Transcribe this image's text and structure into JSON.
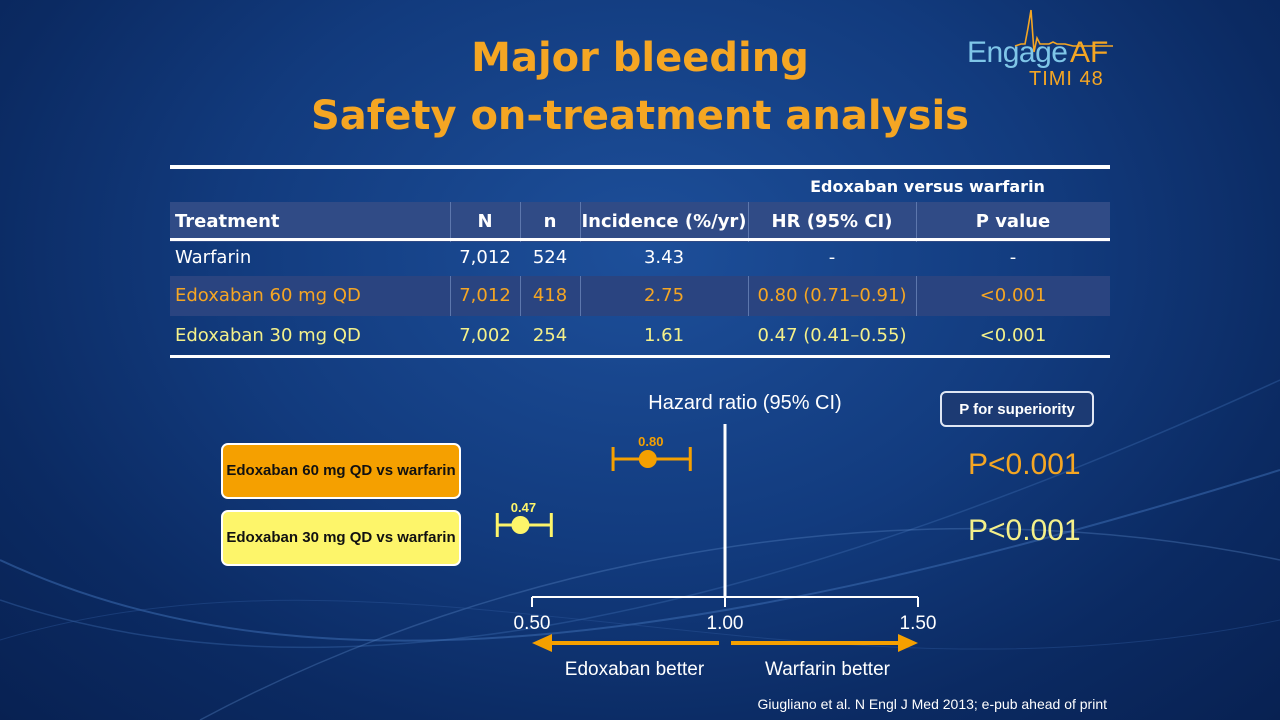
{
  "slide": {
    "title_line1": "Major bleeding",
    "title_line2": "Safety on-treatment analysis",
    "logo": {
      "engage": "Engage",
      "af": "AF",
      "timi": "TIMI 48"
    },
    "citation": "Giugliano et al. N Engl J Med 2013; e-pub ahead of print"
  },
  "table": {
    "supertitle": "Edoxaban versus warfarin",
    "headers": [
      "Treatment",
      "N",
      "n",
      "Incidence (%/yr)",
      "HR (95% CI)",
      "P value"
    ],
    "rows": [
      [
        "Warfarin",
        "7,012",
        "524",
        "3.43",
        "-",
        "-"
      ],
      [
        "Edoxaban 60 mg QD",
        "7,012",
        "418",
        "2.75",
        "0.80 (0.71–0.91)",
        "<0.001"
      ],
      [
        "Edoxaban 30 mg QD",
        "7,002",
        "254",
        "1.61",
        "0.47 (0.41–0.55)",
        "<0.001"
      ]
    ],
    "row_colors": [
      "#ffffff",
      "#f5a623",
      "#f4f08a"
    ]
  },
  "chart_data": {
    "type": "forest",
    "xlabel": "Hazard ratio (95% CI)",
    "xlim": [
      0.5,
      1.5
    ],
    "ticks": [
      "0.50",
      "1.00",
      "1.50"
    ],
    "reference_line": 1.0,
    "direction_labels": {
      "left": "Edoxaban better",
      "right": "Warfarin better"
    },
    "p_header": "P for superiority",
    "series": [
      {
        "label": "Edoxaban 60 mg QD vs warfarin",
        "hr": 0.8,
        "hr_label": "0.80",
        "lo": 0.71,
        "hi": 0.91,
        "p": "P<0.001",
        "color": "#f5a000"
      },
      {
        "label": "Edoxaban 30 mg QD vs warfarin",
        "hr": 0.47,
        "hr_label": "0.47",
        "lo": 0.41,
        "hi": 0.55,
        "p": "P<0.001",
        "color": "#fdf56a"
      }
    ]
  }
}
